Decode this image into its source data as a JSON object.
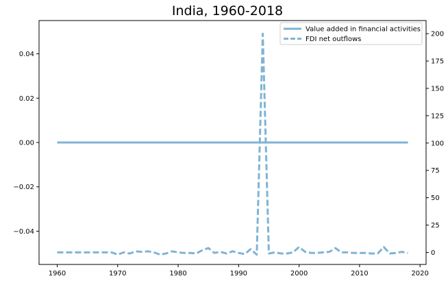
{
  "chart_data": {
    "type": "line",
    "title": "India, 1960-2018",
    "xlabel": "",
    "ylabel_left": "",
    "ylabel_right": "",
    "xlim": [
      1957,
      2021
    ],
    "ylim_left": [
      -0.055,
      0.055
    ],
    "ylim_right": [
      -11,
      212
    ],
    "x_ticks": [
      1960,
      1970,
      1980,
      1990,
      2000,
      2010,
      2020
    ],
    "y_ticks_left": [
      -0.04,
      -0.02,
      0.0,
      0.02,
      0.04
    ],
    "y_ticks_left_labels": [
      "−0.04",
      "−0.02",
      "0.00",
      "0.02",
      "0.04"
    ],
    "y_ticks_right": [
      0,
      25,
      50,
      75,
      100,
      125,
      150,
      175,
      200
    ],
    "grid": false,
    "legend_position": "top-right",
    "series": [
      {
        "name": "Value added in financial activities",
        "axis": "left",
        "style": "solid",
        "color": "#7fb3d5",
        "x": [
          1960,
          2018
        ],
        "y": [
          0.0,
          0.0
        ]
      },
      {
        "name": "FDI net outflows",
        "axis": "right",
        "style": "dashed",
        "color": "#7fb3d5",
        "x": [
          1960,
          1961,
          1962,
          1963,
          1964,
          1965,
          1966,
          1967,
          1968,
          1969,
          1970,
          1971,
          1972,
          1973,
          1974,
          1975,
          1976,
          1977,
          1978,
          1979,
          1980,
          1981,
          1982,
          1983,
          1984,
          1985,
          1986,
          1987,
          1988,
          1989,
          1990,
          1991,
          1992,
          1993,
          1994,
          1995,
          1996,
          1997,
          1998,
          1999,
          2000,
          2001,
          2002,
          2003,
          2004,
          2005,
          2006,
          2007,
          2008,
          2009,
          2010,
          2011,
          2012,
          2013,
          2014,
          2015,
          2016,
          2017,
          2018
        ],
        "y": [
          0,
          0,
          0,
          0,
          0,
          0,
          0,
          0,
          0,
          0,
          -2,
          0,
          -1,
          1,
          0.5,
          1,
          0,
          -2,
          -1,
          1,
          0,
          -0.5,
          -0.5,
          -1,
          2,
          4,
          -0.5,
          0.5,
          -1,
          1,
          -0.5,
          -1.5,
          3,
          -2,
          200,
          -1,
          0,
          -1,
          -1,
          0,
          5,
          0.5,
          -0.5,
          -0.5,
          0,
          0.5,
          4,
          0,
          0,
          -0.5,
          -0.5,
          -0.5,
          -1,
          -1,
          5,
          -1,
          -0.5,
          0.5,
          -0.5
        ]
      }
    ]
  }
}
